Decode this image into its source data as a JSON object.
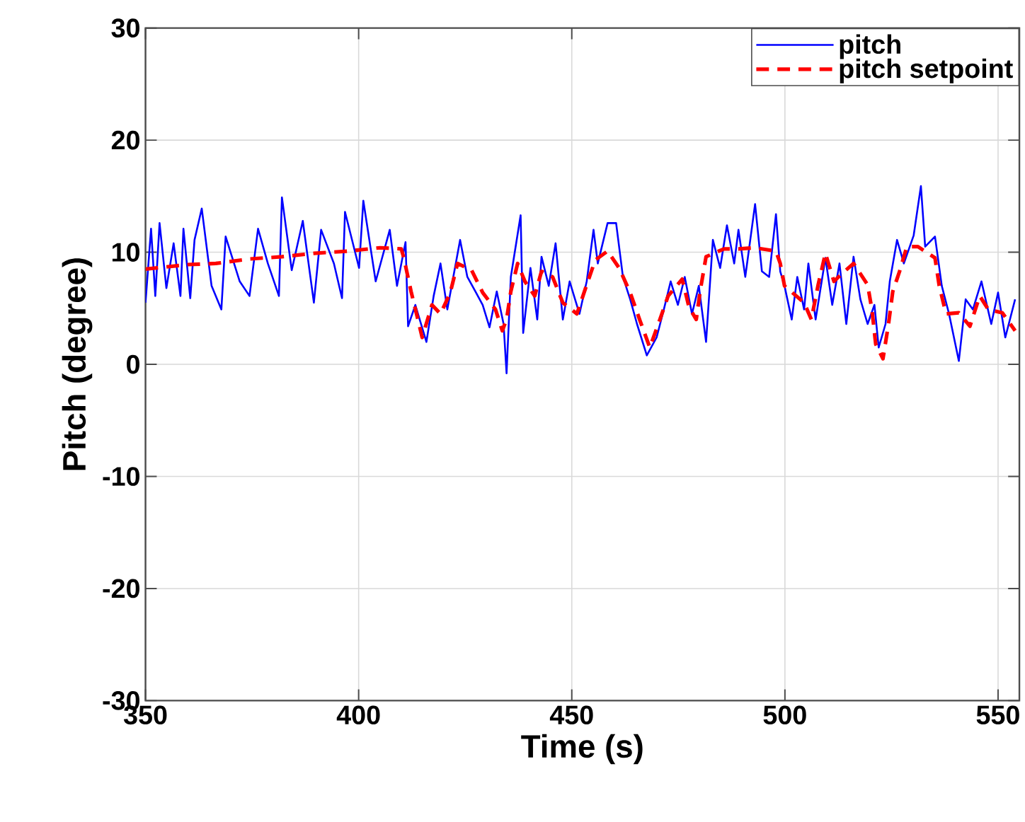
{
  "chart_data": {
    "type": "line",
    "xlabel": "Time (s)",
    "ylabel": "Pitch (degree)",
    "xlim": [
      350,
      555
    ],
    "ylim": [
      -30,
      30
    ],
    "xticks": [
      350,
      400,
      450,
      500,
      550
    ],
    "yticks": [
      -30,
      -20,
      -10,
      0,
      10,
      20,
      30
    ],
    "grid": true,
    "legend": "top right",
    "series": [
      {
        "name": "pitch",
        "color": "#0000ff",
        "line_style": "solid",
        "x": [
          350.0,
          351.3,
          352.3,
          353.3,
          354.9,
          356.6,
          358.2,
          358.9,
          360.5,
          361.5,
          363.2,
          365.5,
          367.8,
          368.8,
          372.1,
          374.4,
          376.4,
          378.7,
          381.3,
          382.0,
          384.3,
          386.9,
          389.5,
          391.2,
          394.2,
          396.1,
          396.8,
          400.1,
          401.1,
          404.0,
          407.3,
          409.0,
          411.0,
          411.6,
          413.3,
          415.9,
          417.6,
          419.2,
          420.8,
          423.8,
          425.5,
          427.4,
          429.1,
          430.7,
          432.4,
          434.0,
          434.7,
          435.7,
          438.0,
          438.6,
          440.3,
          441.9,
          442.9,
          444.6,
          446.2,
          447.9,
          449.5,
          451.8,
          453.5,
          455.1,
          456.1,
          458.4,
          460.4,
          462.0,
          463.7,
          465.3,
          467.6,
          469.9,
          471.6,
          473.2,
          474.9,
          476.5,
          478.2,
          479.8,
          481.5,
          483.1,
          484.8,
          486.4,
          488.1,
          489.1,
          490.7,
          493.0,
          494.6,
          496.3,
          497.9,
          498.9,
          499.9,
          501.6,
          502.9,
          504.5,
          505.5,
          507.2,
          509.5,
          511.1,
          512.8,
          514.4,
          516.1,
          517.7,
          519.4,
          521.0,
          522.0,
          523.6,
          524.6,
          526.3,
          527.9,
          530.2,
          531.9,
          532.9,
          535.2,
          536.8,
          538.5,
          540.8,
          542.4,
          544.1,
          546.1,
          548.4,
          550.0,
          551.7,
          554.0
        ],
        "values": [
          5.5,
          12.1,
          6.1,
          12.6,
          6.8,
          10.8,
          6.1,
          12.1,
          5.9,
          11.1,
          13.9,
          7,
          4.9,
          11.4,
          7.4,
          6.1,
          12.1,
          9,
          6.1,
          14.9,
          8.4,
          12.8,
          5.5,
          12,
          9,
          5.9,
          13.6,
          8.6,
          14.6,
          7.4,
          12,
          7,
          10.9,
          3.4,
          5.3,
          2,
          6.1,
          9,
          4.9,
          11.1,
          7.8,
          6.5,
          5.3,
          3.3,
          6.5,
          3.6,
          -0.8,
          7.8,
          13.3,
          2.8,
          8.6,
          4,
          9.6,
          7,
          10.8,
          4,
          7.4,
          4.5,
          7.4,
          12,
          9,
          12.6,
          12.6,
          7.8,
          5.8,
          3.6,
          0.8,
          2.4,
          4.9,
          7.4,
          5.3,
          7.8,
          4.5,
          7,
          2,
          11.1,
          8.6,
          12.4,
          9,
          12,
          7.8,
          14.3,
          8.3,
          7.8,
          13.4,
          8.3,
          7,
          4,
          7.8,
          4.9,
          9,
          4,
          9.5,
          5.3,
          9,
          3.6,
          9.6,
          5.8,
          3.6,
          5.3,
          1.5,
          3.6,
          7.4,
          11.1,
          9,
          11.5,
          15.9,
          10.5,
          11.4,
          7,
          4.5,
          0.3,
          5.8,
          4.9,
          7.4,
          3.6,
          6.4,
          2.4,
          5.8
        ]
      },
      {
        "name": "pitch setpoint",
        "color": "#ff0000",
        "line_style": "dashed",
        "x": [
          350.0,
          359.9,
          366.5,
          374.4,
          382.0,
          389.5,
          397.5,
          405.0,
          410.0,
          410.6,
          412.3,
          413.9,
          414.9,
          417.2,
          419.2,
          421.5,
          423.2,
          426.5,
          429.1,
          432.1,
          433.7,
          434.7,
          435.7,
          437.3,
          439.0,
          441.3,
          442.9,
          445.5,
          447.9,
          451.2,
          453.5,
          455.5,
          458.4,
          461.1,
          463.7,
          466.0,
          468.3,
          470.3,
          472.6,
          475.9,
          477.5,
          479.2,
          480.1,
          481.5,
          485.7,
          489.1,
          493.0,
          497.9,
          498.9,
          499.9,
          504.5,
          506.2,
          507.8,
          509.5,
          511.5,
          513.1,
          516.1,
          519.4,
          520.4,
          521.3,
          523.0,
          524.3,
          525.3,
          526.9,
          528.6,
          531.2,
          535.2,
          536.2,
          537.8,
          540.8,
          543.4,
          545.7,
          547.7,
          551.0,
          554.0
        ],
        "values": [
          8.5,
          8.9,
          9,
          9.4,
          9.6,
          9.9,
          10.1,
          10.4,
          10.3,
          9.5,
          6.5,
          4,
          2.4,
          5.3,
          4.5,
          6.4,
          9,
          8.4,
          6.4,
          4.9,
          3,
          4,
          6.5,
          9,
          7.4,
          6.1,
          8.3,
          7.8,
          5.5,
          4.5,
          7.1,
          9.3,
          10.1,
          8.6,
          6.4,
          3.9,
          1.5,
          3.6,
          6.1,
          7.6,
          5.1,
          4,
          6.5,
          9.6,
          10.3,
          10.3,
          10.4,
          10.1,
          9,
          7,
          5.5,
          4,
          7.1,
          9.9,
          7.4,
          8,
          9,
          7.1,
          4.9,
          1.8,
          0.5,
          3.6,
          6.5,
          8.3,
          10.5,
          10.5,
          9.5,
          7,
          4.5,
          4.6,
          3.4,
          6.1,
          4.9,
          4.6,
          3
        ]
      }
    ]
  }
}
